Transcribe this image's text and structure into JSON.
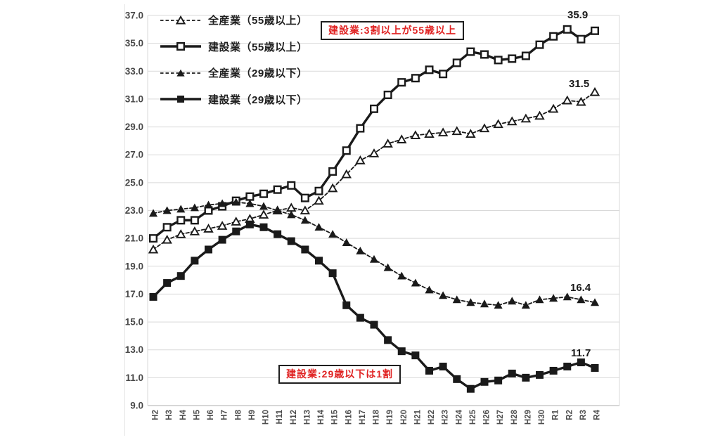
{
  "chart_data": {
    "type": "line",
    "title": "",
    "xlabel": "",
    "ylabel": "",
    "grid": "horizontal",
    "legend_position": "top-left",
    "categories": [
      "H2",
      "H3",
      "H4",
      "H5",
      "H6",
      "H7",
      "H8",
      "H9",
      "H10",
      "H11",
      "H12",
      "H13",
      "H14",
      "H15",
      "H16",
      "H17",
      "H18",
      "H19",
      "H20",
      "H21",
      "H22",
      "H23",
      "H24",
      "H25",
      "H26",
      "H27",
      "H28",
      "H29",
      "H30",
      "R1",
      "R2",
      "R3",
      "R4"
    ],
    "y_axis": {
      "min": 9.0,
      "max": 37.0,
      "step": 2.0,
      "tick_labels": [
        "37.0",
        "35.0",
        "33.0",
        "31.0",
        "29.0",
        "27.0",
        "25.0",
        "23.0",
        "21.0",
        "19.0",
        "17.0",
        "15.0",
        "13.0",
        "11.0",
        "9.0"
      ]
    },
    "series": [
      {
        "name": "全産業（55歳以上）",
        "marker": "open-triangle",
        "line": "dashed",
        "color": "#1a1a1a",
        "end_label": "31.5",
        "values": [
          20.2,
          20.9,
          21.3,
          21.5,
          21.7,
          21.9,
          22.2,
          22.4,
          22.7,
          23.0,
          23.2,
          23.0,
          23.7,
          24.6,
          25.6,
          26.6,
          27.1,
          27.8,
          28.1,
          28.4,
          28.5,
          28.6,
          28.7,
          28.5,
          28.9,
          29.2,
          29.4,
          29.6,
          29.8,
          30.3,
          30.9,
          30.8,
          31.5
        ]
      },
      {
        "name": "建設業（55歳以上）",
        "marker": "open-square",
        "line": "solid",
        "color": "#1a1a1a",
        "end_label": "35.9",
        "values": [
          21.0,
          21.8,
          22.3,
          22.3,
          23.0,
          23.3,
          23.7,
          24.0,
          24.2,
          24.5,
          24.8,
          23.9,
          24.4,
          25.8,
          27.3,
          28.9,
          30.3,
          31.3,
          32.2,
          32.5,
          33.1,
          32.8,
          33.6,
          34.4,
          34.2,
          33.8,
          33.9,
          34.1,
          34.9,
          35.5,
          36.0,
          35.3,
          35.9
        ]
      },
      {
        "name": "全産業（29歳以下）",
        "marker": "filled-triangle",
        "line": "dashed",
        "color": "#1a1a1a",
        "end_label": "16.4",
        "values": [
          22.8,
          23.0,
          23.1,
          23.2,
          23.4,
          23.5,
          23.6,
          23.5,
          23.3,
          23.0,
          22.7,
          22.3,
          21.8,
          21.3,
          20.7,
          20.1,
          19.5,
          18.9,
          18.3,
          17.8,
          17.3,
          16.9,
          16.6,
          16.4,
          16.3,
          16.2,
          16.5,
          16.2,
          16.6,
          16.7,
          16.8,
          16.6,
          16.4
        ]
      },
      {
        "name": "建設業（29歳以下）",
        "marker": "filled-square",
        "line": "solid",
        "color": "#1a1a1a",
        "end_label": "11.7",
        "values": [
          16.8,
          17.8,
          18.3,
          19.4,
          20.2,
          20.9,
          21.5,
          22.0,
          21.8,
          21.3,
          20.8,
          20.2,
          19.4,
          18.5,
          16.2,
          15.3,
          14.8,
          13.7,
          12.9,
          12.6,
          11.5,
          11.8,
          10.9,
          10.2,
          10.7,
          10.8,
          11.3,
          11.0,
          11.2,
          11.5,
          11.8,
          12.1,
          11.7
        ]
      }
    ],
    "annotations": [
      {
        "text": "建設業:3割以上が55歳以上",
        "color": "#e02222"
      },
      {
        "text": "建設業:29歳以下は1割",
        "color": "#e02222"
      }
    ]
  },
  "colors": {
    "line": "#1a1a1a",
    "grid": "#d9d9d9",
    "axis_line": "#bfbfbf",
    "frame": "#e3e3e3",
    "axis_text": "#484848",
    "annotation_text": "#e02222",
    "annotation_border": "#1f1f1f",
    "background": "#ffffff"
  }
}
